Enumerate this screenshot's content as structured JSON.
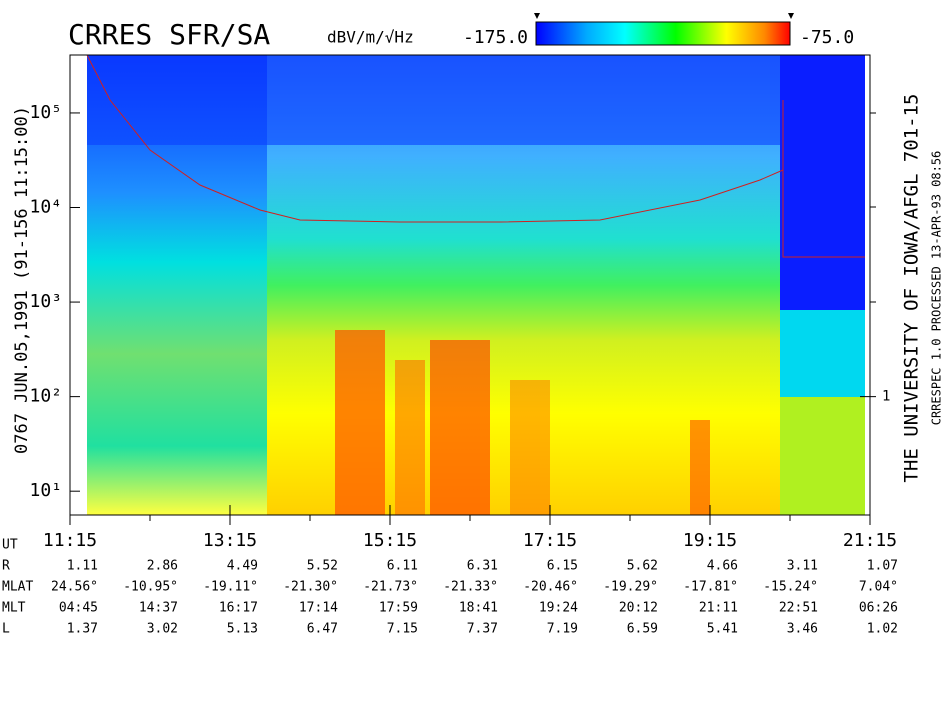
{
  "chart_data": {
    "type": "spectrogram",
    "title": "CRRES SFR/SA",
    "colorbar": {
      "label": "dBV/m/√Hz",
      "lim": [
        {
          "value": -175,
          "label": "-175.0"
        },
        {
          "value": -75,
          "label": "-75.0"
        }
      ]
    },
    "left_caption": "0767  JUN.05,1991  (91-156 11:15:00)",
    "right_caption": "THE UNIVERSITY OF IOWA/AFGL 701-15",
    "right_note": "CRRESPEC 1.0  PROCESSED 13-APR-93  08:56",
    "log_y": true,
    "ylim": [
      5.6,
      410000
    ],
    "yticks": [
      {
        "value": 10,
        "label": "10¹"
      },
      {
        "value": 100,
        "label": "10²"
      },
      {
        "value": 1000,
        "label": "10³"
      },
      {
        "value": 10000,
        "label": "10⁴"
      },
      {
        "value": 100000,
        "label": "10⁵"
      }
    ],
    "y2lim": [
      0.056,
      4100
    ],
    "y2ticks": [
      1
    ],
    "xticks": [
      "11:15",
      "13:15",
      "15:15",
      "17:15",
      "19:15",
      "21:15"
    ],
    "ephemeris": {
      "labels": [
        "UT",
        "R",
        "MLAT",
        "MLT",
        "L"
      ],
      "R": [
        1.11,
        2.86,
        4.49,
        5.52,
        6.11,
        6.31,
        6.15,
        5.62,
        4.66,
        3.11,
        1.07
      ],
      "MLAT": [
        "24.56°",
        "-10.95°",
        "-19.11°",
        "-21.30°",
        "-21.73°",
        "-21.33°",
        "-20.46°",
        "-19.29°",
        "-17.81°",
        "-15.24°",
        "7.04°"
      ],
      "MLT": [
        "04:45",
        "14:37",
        "16:17",
        "17:14",
        "17:59",
        "18:41",
        "19:24",
        "20:12",
        "21:11",
        "22:51",
        "06:26"
      ],
      "L": [
        1.37,
        3.02,
        5.13,
        6.47,
        7.15,
        7.37,
        7.19,
        6.59,
        5.41,
        3.46,
        1.02
      ]
    }
  }
}
